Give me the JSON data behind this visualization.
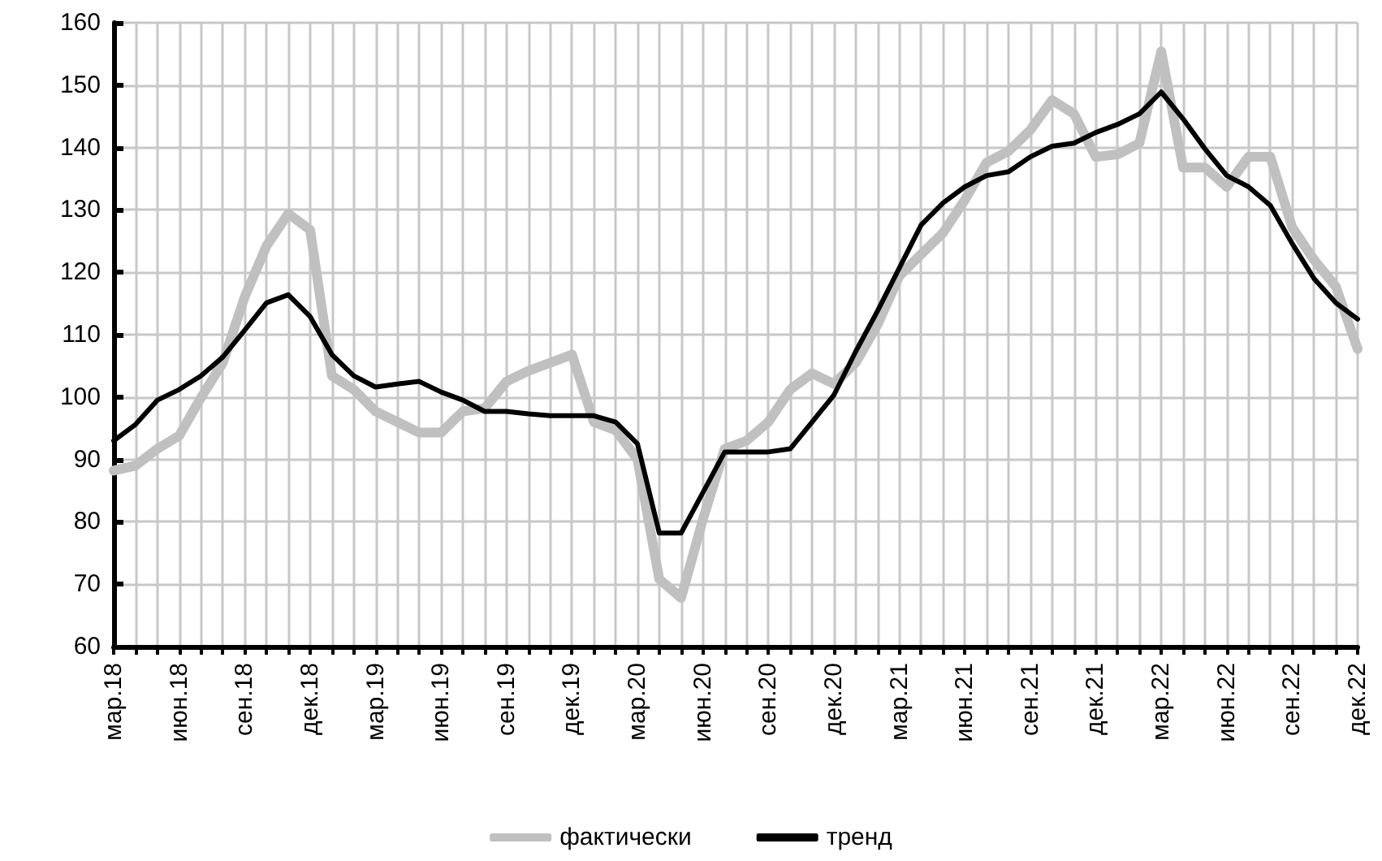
{
  "chart_data": {
    "type": "line",
    "categories": [
      "мар.18",
      null,
      null,
      "июн.18",
      null,
      null,
      "сен.18",
      null,
      null,
      "дек.18",
      null,
      null,
      "мар.19",
      null,
      null,
      "июн.19",
      null,
      null,
      "сен.19",
      null,
      null,
      "дек.19",
      null,
      null,
      "мар.20",
      null,
      null,
      "июн.20",
      null,
      null,
      "сен.20",
      null,
      null,
      "дек.20",
      null,
      null,
      "мар.21",
      null,
      null,
      "июн.21",
      null,
      null,
      "сен.21",
      null,
      null,
      "дек.21",
      null,
      null,
      "мар.22",
      null,
      null,
      "июн.22",
      null,
      null,
      "сен.22",
      null,
      null,
      "дек.22"
    ],
    "series": [
      {
        "name": "фактически",
        "color": "#c0c0c0",
        "values": [
          88.2,
          89,
          91.7,
          93.8,
          99.9,
          105.5,
          116,
          124.2,
          129.4,
          126.8,
          103.4,
          101.2,
          97.7,
          96,
          94.3,
          94.3,
          97.7,
          98.2,
          102.5,
          104.2,
          105.5,
          106.8,
          96,
          94.7,
          90,
          70.8,
          67.8,
          80.4,
          91.7,
          93,
          96,
          101.2,
          103.8,
          102.1,
          105.5,
          111.6,
          119.4,
          122.9,
          126.3,
          131.6,
          137.6,
          139.4,
          142.8,
          147.6,
          145.4,
          138.5,
          138.9,
          140.7,
          155.4,
          136.8,
          136.8,
          133.7,
          138.5,
          138.5,
          127.2,
          122,
          117.7,
          107.7
        ]
      },
      {
        "name": "тренд",
        "color": "#000000",
        "values": [
          93,
          95.6,
          99.5,
          101.2,
          103.4,
          106.4,
          110.7,
          115.1,
          116.4,
          112.9,
          106.8,
          103.4,
          101.6,
          102.1,
          102.5,
          100.8,
          99.5,
          97.7,
          97.7,
          97.3,
          97,
          97,
          97,
          96,
          92.5,
          78.2,
          78.2,
          84.7,
          91.2,
          91.2,
          91.2,
          91.7,
          96,
          100.3,
          107.3,
          113.8,
          120.7,
          127.6,
          131.1,
          133.7,
          135.5,
          136.1,
          138.5,
          140.2,
          140.7,
          142.4,
          143.7,
          145.4,
          148.9,
          144.6,
          139.8,
          135.5,
          133.7,
          130.7,
          124.6,
          119,
          115.1,
          112.5
        ]
      }
    ],
    "ylim": [
      60,
      160
    ],
    "yticks": [
      60,
      70,
      80,
      90,
      100,
      110,
      120,
      130,
      140,
      150,
      160
    ],
    "grid": true,
    "legend": "bottom"
  }
}
